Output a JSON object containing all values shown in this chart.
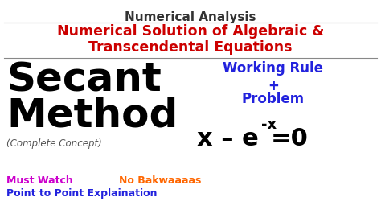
{
  "background_color": "#ffffff",
  "outer_bg_color": "#1a1a1a",
  "title_text": "Numerical Analysis",
  "title_color": "#333333",
  "title_fontsize": 11,
  "subtitle_line1": "Numerical Solution of Algebraic &",
  "subtitle_line2": "Transcendental Equations",
  "subtitle_color": "#cc0000",
  "subtitle_fontsize": 12.5,
  "secant_line1": "Secant",
  "secant_line2": "Method",
  "secant_color": "#000000",
  "secant_fontsize": 36,
  "complete_text": "(Complete Concept)",
  "complete_color": "#555555",
  "complete_fontsize": 8.5,
  "working_text": "Working Rule\n+\nProblem",
  "working_color": "#2222dd",
  "working_fontsize": 12,
  "equation_x_text": "x – e",
  "equation_exp_text": "-x",
  "equation_end_text": "=0",
  "equation_color": "#000000",
  "equation_fontsize": 22,
  "equation_exp_fontsize": 13,
  "must_watch_text": "Must Watch",
  "must_watch_color": "#cc00cc",
  "must_watch_fontsize": 9,
  "no_bak_text": "No Bakwaaaas",
  "no_bak_color": "#ff6600",
  "no_bak_fontsize": 9,
  "point_text": "Point to Point Explaination",
  "point_color": "#2222dd",
  "point_fontsize": 9,
  "line_color": "#888888",
  "line_width": 0.8
}
